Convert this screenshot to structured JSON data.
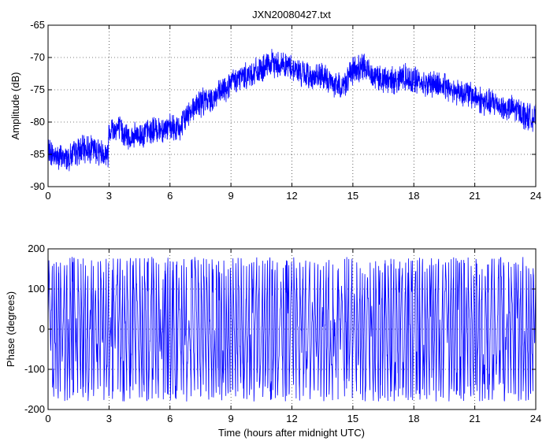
{
  "chart_data": [
    {
      "type": "line",
      "title": "JXN20080427.txt",
      "xlabel": "",
      "ylabel": "Amplitude (dB)",
      "xlim": [
        0,
        24
      ],
      "ylim": [
        -90,
        -65
      ],
      "xticks": [
        "0",
        "3",
        "6",
        "9",
        "12",
        "15",
        "18",
        "21",
        "24"
      ],
      "yticks": [
        "-65",
        "-70",
        "-75",
        "-80",
        "-85",
        "-90"
      ],
      "grid": true,
      "color": "#0000ff",
      "series": [
        {
          "x": [
            0,
            0.5,
            1,
            1.5,
            2,
            2.5,
            2.95,
            3.0,
            3.5,
            4,
            4.5,
            5,
            5.5,
            6,
            6.5,
            7,
            7.5,
            8,
            8.5,
            9,
            9.5,
            10,
            10.5,
            11,
            11.5,
            12,
            12.5,
            13,
            13.5,
            14,
            14.5,
            15,
            15.5,
            16,
            16.5,
            17,
            17.5,
            18,
            18.5,
            19,
            19.5,
            20,
            20.5,
            21,
            21.5,
            22,
            22.5,
            23,
            23.5,
            24
          ],
          "y": [
            -84.5,
            -85.5,
            -85.5,
            -84.5,
            -84,
            -84.5,
            -85,
            -81,
            -81,
            -82.5,
            -82,
            -81.5,
            -81,
            -81,
            -81,
            -78,
            -77,
            -76.5,
            -75.5,
            -74,
            -73,
            -72.5,
            -72,
            -71,
            -71,
            -71.5,
            -72.5,
            -73,
            -73,
            -74,
            -74.5,
            -72,
            -71.5,
            -72.5,
            -73.5,
            -73.5,
            -73,
            -73.5,
            -74,
            -74,
            -74.5,
            -75,
            -75.5,
            -76,
            -77,
            -77,
            -78,
            -78,
            -79,
            -79.5
          ]
        }
      ]
    },
    {
      "type": "line",
      "title": "",
      "xlabel": "Time (hours after midnight UTC)",
      "ylabel": "Phase (degrees)",
      "xlim": [
        0,
        24
      ],
      "ylim": [
        -200,
        200
      ],
      "xticks": [
        "0",
        "3",
        "6",
        "9",
        "12",
        "15",
        "18",
        "21",
        "24"
      ],
      "yticks": [
        "200",
        "100",
        "0",
        "-100",
        "-200"
      ],
      "grid": true,
      "color": "#0000ff",
      "series": [
        {
          "x": [
            0,
            0.5,
            1,
            1.5,
            2,
            2.5,
            3,
            3.5,
            4,
            4.5,
            5,
            5.5,
            6,
            6.5,
            7,
            7.5,
            8,
            8.5,
            9,
            9.5,
            10,
            10.5,
            11,
            11.5,
            12,
            12.5,
            13,
            13.5,
            14,
            14.5,
            15,
            15.5,
            16,
            16.5,
            17,
            17.5,
            18,
            18.5,
            19,
            19.5,
            20,
            20.5,
            21,
            21.5,
            22,
            22.5,
            23,
            23.5,
            24
          ],
          "y": [
            0,
            120,
            -150,
            60,
            -80,
            170,
            -170,
            110,
            -40,
            90,
            -160,
            30,
            -100,
            150,
            -60,
            20,
            -130,
            80,
            -20,
            160,
            -90,
            40,
            -170,
            100,
            -10,
            130,
            -70,
            50,
            -140,
            10,
            -50,
            170,
            -120,
            70,
            -30,
            140,
            -160,
            90,
            -80,
            20,
            160,
            -110,
            60,
            -170,
            120,
            -40,
            80,
            -150,
            30
          ]
        }
      ]
    }
  ]
}
